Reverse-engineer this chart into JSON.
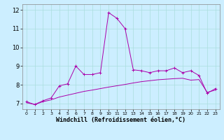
{
  "xlabel": "Windchill (Refroidissement éolien,°C)",
  "bg_color": "#cceeff",
  "line_color": "#aa00aa",
  "xlim": [
    -0.5,
    23.5
  ],
  "ylim": [
    6.7,
    12.3
  ],
  "yticks": [
    7,
    8,
    9,
    10,
    11,
    12
  ],
  "xticks": [
    0,
    1,
    2,
    3,
    4,
    5,
    6,
    7,
    8,
    9,
    10,
    11,
    12,
    13,
    14,
    15,
    16,
    17,
    18,
    19,
    20,
    21,
    22,
    23
  ],
  "s1_x": [
    0,
    1,
    2,
    3,
    4,
    5,
    6,
    7,
    8,
    9,
    10,
    11,
    12,
    13,
    14,
    15,
    16,
    17,
    18,
    19,
    20,
    21,
    22,
    23
  ],
  "s1_y": [
    7.1,
    6.95,
    7.15,
    7.3,
    7.95,
    8.05,
    9.0,
    8.55,
    8.55,
    8.65,
    11.85,
    11.55,
    11.0,
    8.8,
    8.75,
    8.65,
    8.75,
    8.75,
    8.9,
    8.65,
    8.75,
    8.5,
    7.55,
    7.8
  ],
  "s2_x": [
    0,
    1,
    2,
    3,
    4,
    5,
    6,
    7,
    8,
    9,
    10,
    11,
    12,
    13,
    14,
    15,
    16,
    17,
    18,
    19,
    20,
    21,
    22,
    23
  ],
  "s2_y": [
    7.05,
    6.95,
    7.1,
    7.2,
    7.35,
    7.45,
    7.55,
    7.65,
    7.72,
    7.8,
    7.88,
    7.95,
    8.02,
    8.1,
    8.17,
    8.22,
    8.27,
    8.3,
    8.33,
    8.35,
    8.25,
    8.28,
    7.6,
    7.72
  ],
  "grid_color": "#aadddd",
  "xlabel_fontsize": 6,
  "tick_fontsize": 5.5
}
